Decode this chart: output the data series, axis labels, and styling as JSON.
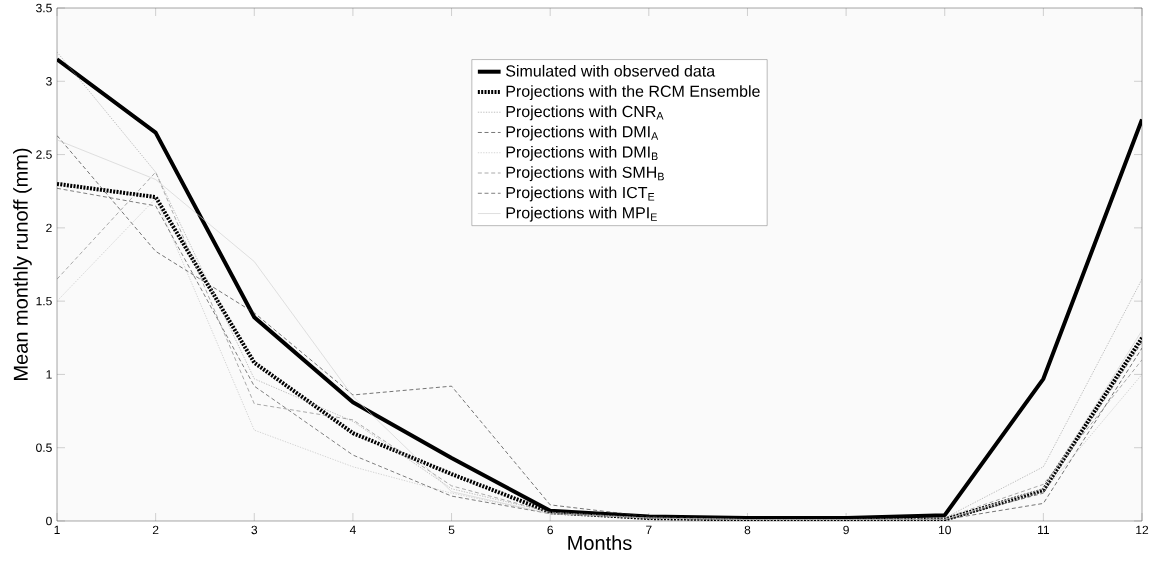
{
  "chart_data": {
    "type": "line",
    "xlabel": "Months",
    "ylabel": "Mean monthly runoff (mm)",
    "x": [
      1,
      2,
      3,
      4,
      5,
      6,
      7,
      8,
      9,
      10,
      11,
      12
    ],
    "xlim": [
      1,
      12
    ],
    "xticks": [
      1,
      2,
      3,
      4,
      5,
      6,
      7,
      8,
      9,
      10,
      11,
      12
    ],
    "ylim": [
      0,
      3.5
    ],
    "yticks": [
      0,
      0.5,
      1,
      1.5,
      2,
      2.5,
      3,
      3.5
    ],
    "grid": false,
    "legend": "top",
    "marker": "none",
    "series": [
      {
        "name": "Simulated with observed data",
        "color": "#000000",
        "line_style": "solid",
        "values": [
          3.15,
          2.65,
          1.39,
          0.81,
          0.43,
          0.07,
          0.03,
          0.02,
          0.02,
          0.04,
          0.97,
          2.74
        ]
      },
      {
        "name": "Projections with the RCM Ensemble",
        "color": "#000000",
        "line_style": "dotted",
        "values": [
          2.3,
          2.21,
          1.08,
          0.6,
          0.32,
          0.06,
          0.02,
          0.01,
          0.01,
          0.01,
          0.21,
          1.25
        ]
      },
      {
        "name": "Projections with CNR$_{A}$",
        "color": "#a0a0a0",
        "line_style": "dotted",
        "values": [
          3.2,
          2.38,
          0.97,
          0.68,
          0.22,
          0.06,
          0.02,
          0.01,
          0.01,
          0.02,
          0.37,
          1.65
        ]
      },
      {
        "name": "Projections with DMI$_{A}$",
        "color": "#303030",
        "line_style": "dashed",
        "values": [
          2.63,
          1.84,
          1.42,
          0.86,
          0.92,
          0.11,
          0.03,
          0.01,
          0.01,
          0.01,
          0.12,
          1.18
        ]
      },
      {
        "name": "Projections with DMI$_{B}$",
        "color": "#c0c0c0",
        "line_style": "dotted",
        "values": [
          1.5,
          2.2,
          0.62,
          0.37,
          0.19,
          0.05,
          0.02,
          0.01,
          0.01,
          0.01,
          0.2,
          1.0
        ]
      },
      {
        "name": "Projections with SMH$_{B}$",
        "color": "#808080",
        "line_style": "dashed",
        "values": [
          1.65,
          2.38,
          0.8,
          0.69,
          0.24,
          0.06,
          0.02,
          0.01,
          0.01,
          0.02,
          0.25,
          1.1
        ]
      },
      {
        "name": "Projections with ICT$_{E}$",
        "color": "#404040",
        "line_style": "dashed",
        "values": [
          2.27,
          2.15,
          0.92,
          0.45,
          0.17,
          0.05,
          0.02,
          0.01,
          0.01,
          0.01,
          0.19,
          1.22
        ]
      },
      {
        "name": "Projections with MPI$_{E}$",
        "color": "#d0d0d0",
        "line_style": "solid",
        "values": [
          2.6,
          2.33,
          1.77,
          0.85,
          0.2,
          0.05,
          0.02,
          0.01,
          0.01,
          0.01,
          0.22,
          1.3
        ]
      }
    ]
  }
}
